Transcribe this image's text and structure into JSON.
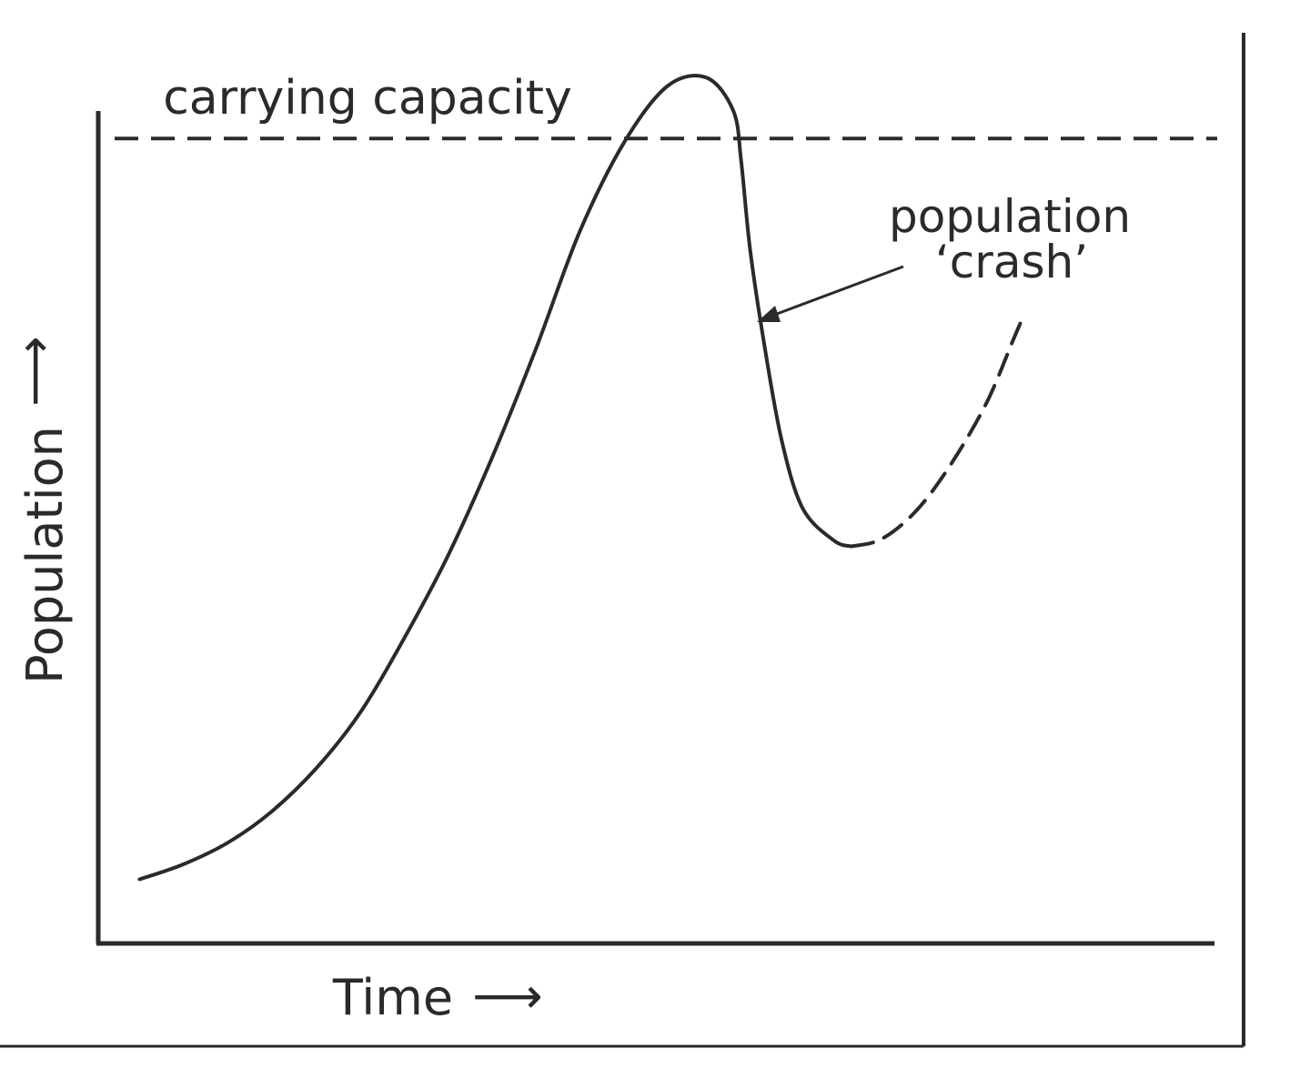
{
  "chart_data": {
    "type": "line",
    "xlabel": "Time",
    "ylabel": "Population",
    "x_arrow": "⟶",
    "y_arrow": "⟶",
    "xlim": [
      0,
      100
    ],
    "ylim": [
      0,
      100
    ],
    "grid": false,
    "colors": {
      "ink": "#2a2a2a",
      "background": "#ffffff"
    },
    "reference_line": {
      "label": "carrying capacity",
      "y": 96.7,
      "style": "dashed"
    },
    "annotations": [
      {
        "lines": [
          "population",
          "‘crash’"
        ],
        "x": 59.9,
        "y": 75.2,
        "arrow": true
      }
    ],
    "series": [
      {
        "style": "solid",
        "points": [
          [
            3.7,
            7.7
          ],
          [
            7.6,
            9.5
          ],
          [
            11.6,
            12.1
          ],
          [
            15.5,
            15.8
          ],
          [
            19.5,
            21.0
          ],
          [
            23.4,
            27.6
          ],
          [
            27.3,
            36.4
          ],
          [
            31.3,
            46.5
          ],
          [
            35.2,
            58.1
          ],
          [
            39.2,
            71.4
          ],
          [
            43.1,
            85.4
          ],
          [
            47.1,
            96.2
          ],
          [
            51.0,
            103.0
          ],
          [
            54.5,
            104.0
          ],
          [
            56.9,
            100.0
          ],
          [
            57.6,
            93.9
          ],
          [
            58.4,
            83.3
          ],
          [
            59.6,
            72.5
          ],
          [
            61.2,
            60.6
          ],
          [
            63.1,
            52.3
          ],
          [
            65.9,
            48.4
          ],
          [
            67.5,
            47.7
          ]
        ]
      },
      {
        "style": "dashed",
        "points": [
          [
            67.5,
            47.7
          ],
          [
            70.2,
            48.6
          ],
          [
            73.3,
            52.0
          ],
          [
            76.5,
            57.8
          ],
          [
            79.6,
            65.0
          ],
          [
            82.0,
            72.6
          ],
          [
            82.7,
            74.8
          ]
        ]
      }
    ]
  }
}
